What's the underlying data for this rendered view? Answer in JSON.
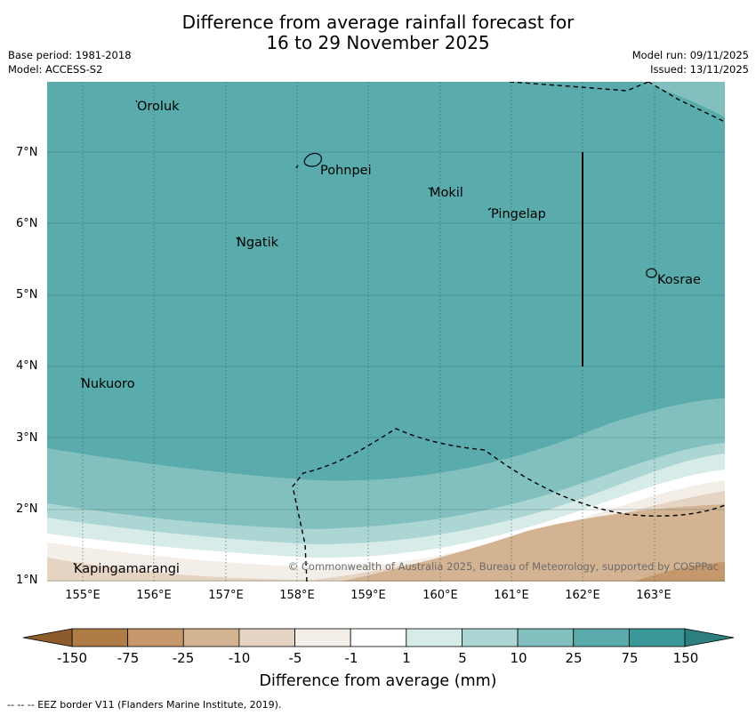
{
  "title": {
    "line1": "Difference from average rainfall forecast for",
    "line2": "16 to 29 November 2025"
  },
  "meta": {
    "base_period": "Base period: 1981-2018",
    "model": "Model: ACCESS-S2",
    "model_run": "Model run: 09/11/2025",
    "issued": "Issued: 13/11/2025"
  },
  "map": {
    "latitudes": [
      "7°N",
      "6°N",
      "5°N",
      "4°N",
      "3°N",
      "2°N",
      "1°N"
    ],
    "longitudes": [
      "155°E",
      "156°E",
      "157°E",
      "158°E",
      "159°E",
      "160°E",
      "161°E",
      "162°E",
      "163°E"
    ],
    "places": {
      "oroluk": "Oroluk",
      "pohnpei": "Pohnpei",
      "mokil": "Mokil",
      "pingelap": "Pingelap",
      "ngatik": "Ngatik",
      "kosrae": "Kosrae",
      "nukuoro": "Nukuoro",
      "kapingamarangi": "Kapingamarangi"
    },
    "copyright": "© Commonwealth of Australia 2025, Bureau of Meteorology, supported by COSPPac"
  },
  "colorbar": {
    "ticks": [
      "-150",
      "-75",
      "-25",
      "-10",
      "-5",
      "-1",
      "1",
      "5",
      "10",
      "25",
      "75",
      "150"
    ],
    "colors": [
      "#b07c45",
      "#c4986b",
      "#d4b393",
      "#e6d4c2",
      "#f3eee8",
      "#ffffff",
      "#d7ebe9",
      "#acd6d4",
      "#82c0bf",
      "#5aabab",
      "#3a9898"
    ],
    "end_low_color": "#8c5c2c",
    "end_high_color": "#2b7f7f",
    "label": "Difference from average (mm)"
  },
  "footer": {
    "eez": "--  --  -- EEZ border V11 (Flanders Marine Institute, 2019)."
  }
}
